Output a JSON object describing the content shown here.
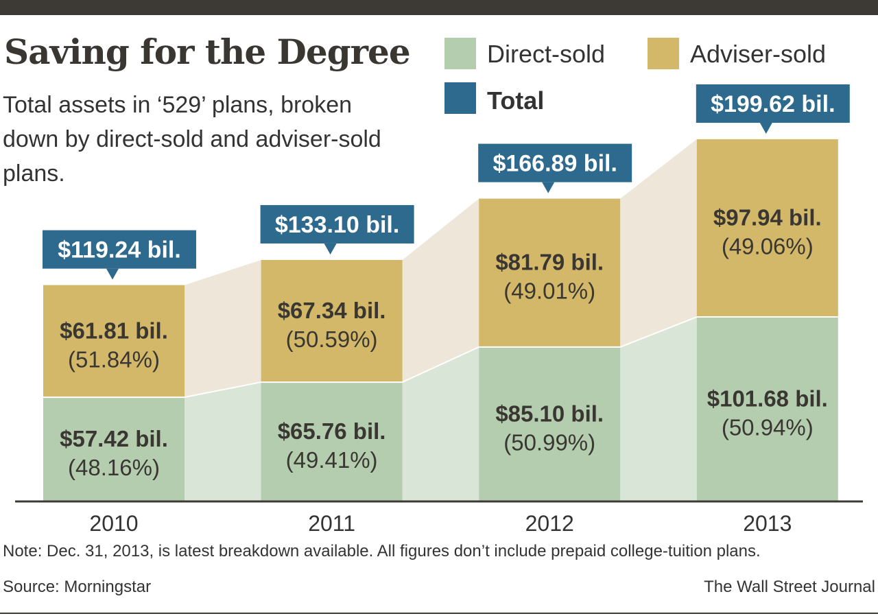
{
  "header": {
    "title": "Saving for the Degree",
    "subtitle": "Total assets in ‘529’ plans, broken down by direct-sold and adviser-sold plans."
  },
  "legend": {
    "direct": "Direct-sold",
    "adviser": "Adviser-sold",
    "total": "Total"
  },
  "colors": {
    "direct": "#b4cdaf",
    "adviser": "#d2b868",
    "total": "#2d6a8e",
    "direct_band": "#d9e5d6",
    "adviser_band": "#eee7d9",
    "axis": "#3d3a35"
  },
  "chart_data": {
    "type": "bar",
    "stacked": true,
    "categories": [
      "2010",
      "2011",
      "2012",
      "2013"
    ],
    "series": [
      {
        "name": "Direct-sold",
        "values": [
          57.42,
          65.76,
          85.1,
          101.68
        ],
        "labels": [
          "$57.42 bil.",
          "$65.76 bil.",
          "$85.10 bil.",
          "$101.68 bil."
        ],
        "pct_labels": [
          "(48.16%)",
          "(49.41%)",
          "(50.99%)",
          "(50.94%)"
        ]
      },
      {
        "name": "Adviser-sold",
        "values": [
          61.81,
          67.34,
          81.79,
          97.94
        ],
        "labels": [
          "$61.81 bil.",
          "$67.34 bil.",
          "$81.79 bil.",
          "$97.94 bil."
        ],
        "pct_labels": [
          "(51.84%)",
          "(50.59%)",
          "(49.01%)",
          "(49.06%)"
        ]
      }
    ],
    "totals": [
      119.24,
      133.1,
      166.89,
      199.62
    ],
    "total_labels": [
      "$119.24 bil.",
      "$133.10 bil.",
      "$166.89 bil.",
      "$199.62 bil."
    ],
    "ylim": [
      0,
      200
    ]
  },
  "footer": {
    "note": "Note: Dec. 31, 2013, is latest breakdown available. All figures don’t include prepaid college-tuition plans.",
    "source": "Source: Morningstar",
    "credit": "The Wall Street Journal"
  }
}
